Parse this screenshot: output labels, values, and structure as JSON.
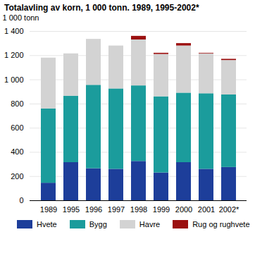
{
  "chart_data": {
    "type": "bar",
    "stacked": true,
    "title": "Totalavling av korn, 1 000 tonn. 1989, 1995-2002*",
    "y_label": "1 000 tonn",
    "categories": [
      "1989",
      "1995",
      "1996",
      "1997",
      "1998",
      "1999",
      "2000",
      "2001",
      "2002*"
    ],
    "series": [
      {
        "name": "Hvete",
        "color": "#1d3e9a",
        "values": [
          145,
          315,
          265,
          260,
          325,
          230,
          315,
          260,
          275
        ]
      },
      {
        "name": "Bygg",
        "color": "#1b9c9c",
        "values": [
          615,
          550,
          690,
          665,
          625,
          630,
          575,
          625,
          600
        ]
      },
      {
        "name": "Havre",
        "color": "#d3d3d3",
        "values": [
          420,
          350,
          380,
          355,
          380,
          350,
          390,
          330,
          285
        ]
      },
      {
        "name": "Rug og rughvete",
        "color": "#9b1010",
        "values": [
          0,
          0,
          0,
          0,
          30,
          10,
          20,
          5,
          10
        ]
      }
    ],
    "ylim": [
      0,
      1400
    ],
    "yticks": [
      0,
      200,
      400,
      600,
      800,
      {
        "value": 1000,
        "label": "1 000"
      },
      {
        "value": 1200,
        "label": "1 200"
      },
      {
        "value": 1400,
        "label": "1 400"
      }
    ],
    "grid": true,
    "legend": "bottom"
  }
}
